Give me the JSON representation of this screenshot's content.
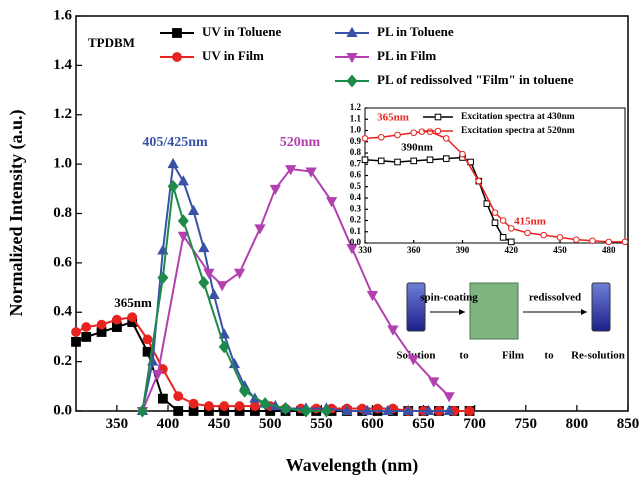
{
  "chart_data": [
    {
      "type": "line",
      "x_label": "Wavelength (nm)",
      "y_label": "Normalized Intensity (a.u.)",
      "xlim": [
        310,
        850
      ],
      "xticks": [
        350,
        400,
        450,
        500,
        550,
        600,
        650,
        700,
        750,
        800,
        850
      ],
      "ylim": [
        0,
        1.6
      ],
      "yticks": [
        {
          "value": 0,
          "label": "0.0"
        },
        0.2,
        0.4,
        0.6,
        0.8,
        {
          "value": 1,
          "label": "1.0"
        },
        1.2,
        1.4,
        1.6
      ],
      "legend": "top",
      "annotations": [
        {
          "text": "TPDBM",
          "color": "#000000"
        },
        {
          "text": "365nm",
          "color": "#000000"
        },
        {
          "text": "405/425nm",
          "color": "#3a52a6"
        },
        {
          "text": "520nm",
          "color": "#b340b0"
        }
      ],
      "series": [
        {
          "name": "UV in Toluene",
          "color": "#000000",
          "marker": "square",
          "x": [
            310,
            320,
            335,
            350,
            365,
            380,
            395,
            410,
            425,
            440,
            455,
            470,
            485,
            500,
            515,
            530,
            545,
            560,
            575,
            590,
            605,
            620,
            635,
            650,
            665,
            680,
            695
          ],
          "values": [
            0.28,
            0.3,
            0.32,
            0.34,
            0.36,
            0.24,
            0.05,
            0.0,
            0.0,
            0.0,
            0.0,
            0.0,
            0.0,
            0.0,
            0.0,
            0.0,
            0.0,
            0.0,
            0.0,
            0.0,
            0.0,
            0.0,
            0.0,
            0.0,
            0.0,
            0.0,
            0.0
          ]
        },
        {
          "name": "UV in Film",
          "color": "#e8231f",
          "marker": "circle",
          "x": [
            310,
            320,
            335,
            350,
            365,
            380,
            395,
            410,
            425,
            440,
            455,
            470,
            485,
            500,
            515,
            530,
            545,
            560,
            575,
            590,
            605,
            620,
            635,
            650,
            665,
            680,
            695
          ],
          "values": [
            0.32,
            0.34,
            0.35,
            0.37,
            0.38,
            0.29,
            0.17,
            0.06,
            0.03,
            0.02,
            0.02,
            0.02,
            0.02,
            0.02,
            0.01,
            0.01,
            0.01,
            0.01,
            0.01,
            0.01,
            0.01,
            0.01,
            0.0,
            0.0,
            0.0,
            0.0,
            0.0
          ]
        },
        {
          "name": "PL in Toluene",
          "color": "#3a52a6",
          "marker": "triangle",
          "x": [
            375,
            385,
            395,
            405,
            415,
            425,
            435,
            445,
            455,
            465,
            475,
            485,
            495,
            505,
            515,
            535,
            555,
            575,
            595,
            615,
            635,
            655,
            675
          ],
          "values": [
            0.0,
            0.2,
            0.65,
            1.0,
            0.93,
            0.81,
            0.66,
            0.47,
            0.31,
            0.19,
            0.1,
            0.05,
            0.03,
            0.02,
            0.01,
            0.01,
            0.01,
            0.0,
            0.0,
            0.0,
            0.0,
            0.0,
            0.0
          ]
        },
        {
          "name": "PL in Film",
          "color": "#b340b0",
          "marker": "triangle-down",
          "x": [
            375,
            390,
            415,
            440,
            453,
            470,
            490,
            505,
            520,
            540,
            560,
            580,
            600,
            620,
            640,
            660,
            675
          ],
          "values": [
            0.0,
            0.15,
            0.71,
            0.56,
            0.51,
            0.56,
            0.74,
            0.9,
            0.98,
            0.97,
            0.85,
            0.66,
            0.47,
            0.33,
            0.21,
            0.12,
            0.06
          ]
        },
        {
          "name": "PL of redissolved \"Film\" in toluene",
          "color": "#1d8a4a",
          "marker": "diamond",
          "x": [
            375,
            395,
            405,
            415,
            435,
            455,
            475,
            495,
            515,
            535,
            555
          ],
          "values": [
            0.0,
            0.54,
            0.91,
            0.77,
            0.52,
            0.26,
            0.08,
            0.03,
            0.01,
            0.0,
            0.0
          ]
        }
      ]
    },
    {
      "type": "line",
      "xlim": [
        330,
        490
      ],
      "xticks": [
        330,
        360,
        390,
        420,
        450,
        480
      ],
      "ylim": [
        0,
        1.2
      ],
      "yticks": [
        {
          "value": 0,
          "label": "0.0"
        },
        0.1,
        0.2,
        0.3,
        0.4,
        0.5,
        0.6,
        0.7,
        0.8,
        0.9,
        {
          "value": 1,
          "label": "1.0"
        },
        1.1,
        1.2
      ],
      "legend": "top right",
      "annotations": [
        {
          "text": "365nm",
          "color": "#e8231f"
        },
        {
          "text": "390nm",
          "color": "#000000"
        },
        {
          "text": "415nm",
          "color": "#e8231f"
        }
      ],
      "series": [
        {
          "name": "Excitation spectra at 430nm",
          "color": "#000000",
          "marker": "square-open",
          "x": [
            330,
            340,
            350,
            360,
            370,
            380,
            390,
            395,
            400,
            405,
            410,
            415,
            420
          ],
          "values": [
            0.74,
            0.73,
            0.72,
            0.73,
            0.74,
            0.75,
            0.76,
            0.72,
            0.55,
            0.35,
            0.18,
            0.05,
            0.01
          ]
        },
        {
          "name": "Excitation spectra at 520nm",
          "color": "#e8231f",
          "marker": "circle-open",
          "x": [
            330,
            340,
            350,
            360,
            365,
            370,
            380,
            390,
            400,
            410,
            415,
            420,
            430,
            440,
            450,
            460,
            470,
            480,
            490
          ],
          "values": [
            0.93,
            0.94,
            0.96,
            0.98,
            0.99,
            0.99,
            0.93,
            0.79,
            0.55,
            0.27,
            0.2,
            0.13,
            0.09,
            0.07,
            0.05,
            0.03,
            0.02,
            0.01,
            0.01
          ]
        }
      ]
    }
  ],
  "schematic": {
    "steps": [
      "spin-coating",
      "redissolved"
    ],
    "labels": [
      "Solution",
      "to",
      "Film",
      "to",
      "Re-solution"
    ]
  }
}
